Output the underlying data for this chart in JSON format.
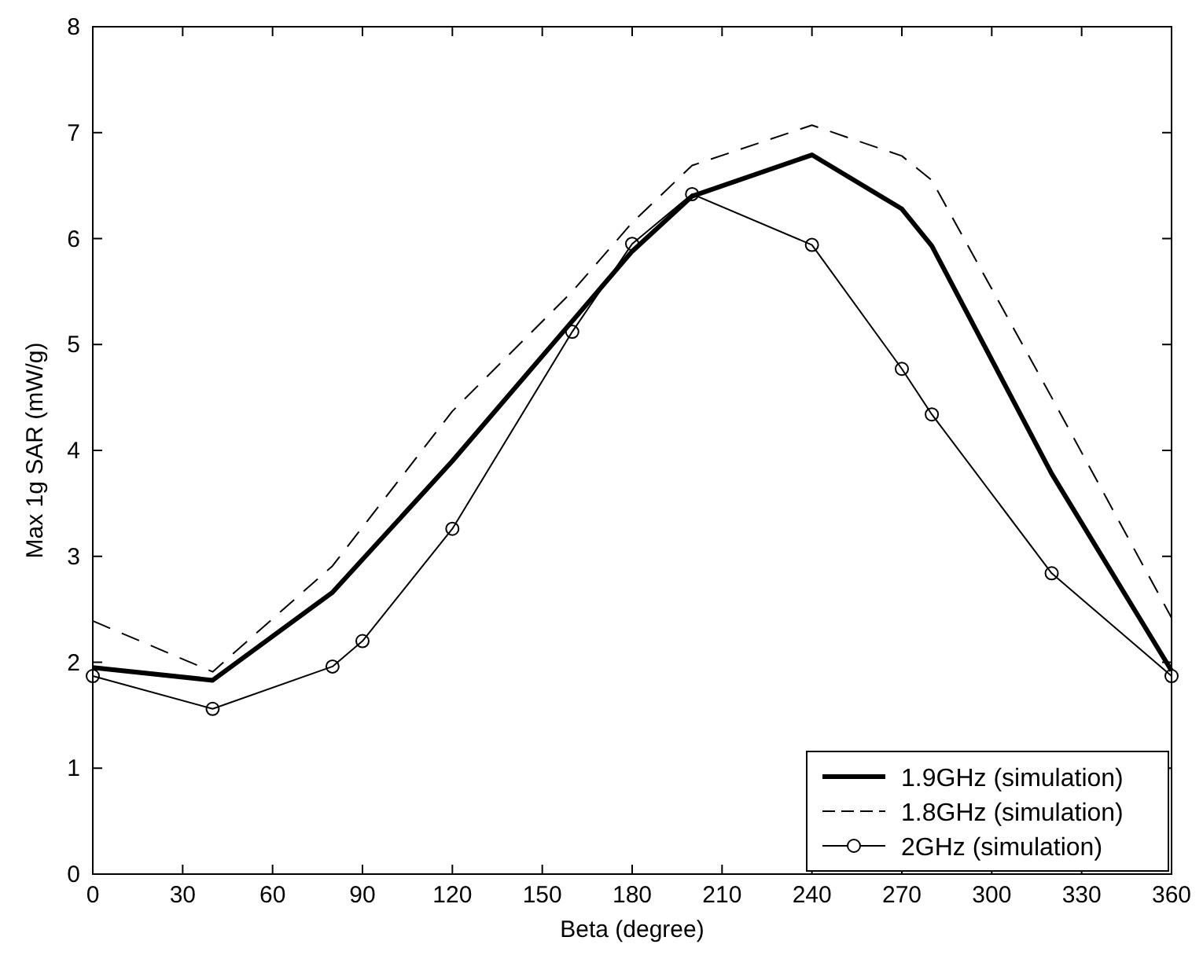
{
  "chart_data": {
    "type": "line",
    "xlabel": "Beta (degree)",
    "ylabel": "Max 1g SAR (mW/g)",
    "xlim": [
      0,
      360
    ],
    "xticks": [
      0,
      30,
      60,
      90,
      120,
      150,
      180,
      210,
      240,
      270,
      300,
      330,
      360
    ],
    "ylim": [
      0,
      8
    ],
    "yticks": [
      0,
      1,
      2,
      3,
      4,
      5,
      6,
      7,
      8
    ],
    "grid": false,
    "legend": "bottom right",
    "series": [
      {
        "name": "1.9GHz (simulation)",
        "color": "#000000",
        "marker": "none",
        "line_style": "solid",
        "x": [
          0,
          40,
          80,
          120,
          160,
          180,
          200,
          240,
          270,
          280,
          320,
          360
        ],
        "values": [
          1.95,
          1.83,
          2.66,
          3.9,
          5.22,
          5.88,
          6.4,
          6.79,
          6.28,
          5.93,
          3.78,
          1.92
        ]
      },
      {
        "name": "1.8GHz (simulation)",
        "color": "#000000",
        "marker": "none",
        "line_style": "dashed",
        "x": [
          0,
          40,
          80,
          120,
          160,
          180,
          200,
          240,
          270,
          280,
          320,
          360
        ],
        "values": [
          2.39,
          1.91,
          2.91,
          4.37,
          5.5,
          6.15,
          6.69,
          7.07,
          6.78,
          6.55,
          4.5,
          2.42
        ]
      },
      {
        "name": "2GHz (simulation)",
        "color": "#000000",
        "marker": "circle",
        "line_style": "solid",
        "x": [
          0,
          40,
          80,
          90,
          120,
          160,
          180,
          200,
          240,
          270,
          280,
          320,
          360
        ],
        "values": [
          1.87,
          1.56,
          1.96,
          2.2,
          3.26,
          5.12,
          5.95,
          6.42,
          5.94,
          4.77,
          4.34,
          2.84,
          1.87
        ]
      }
    ]
  }
}
